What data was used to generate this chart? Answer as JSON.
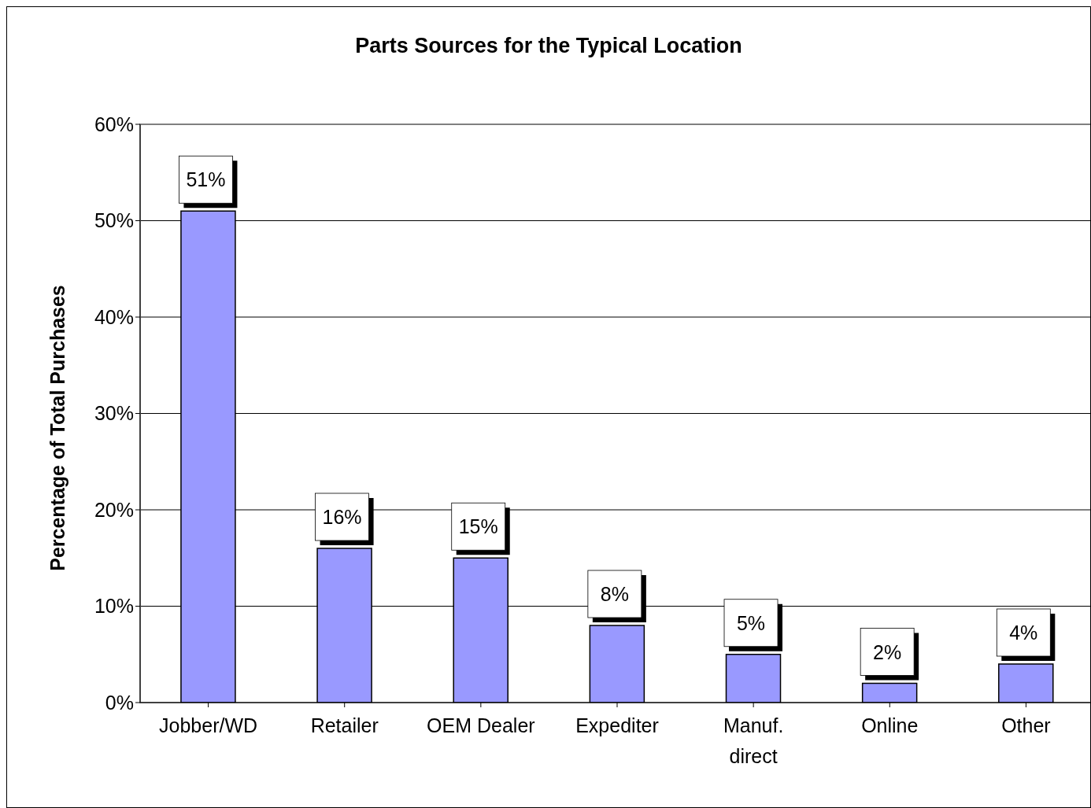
{
  "chart_data": {
    "type": "bar",
    "title": "Parts Sources for the Typical Location",
    "ylabel": "Percentage of Total Purchases",
    "categories": [
      "Jobber/WD",
      "Retailer",
      "OEM Dealer",
      "Expediter",
      "Manuf. direct",
      "Online",
      "Other"
    ],
    "values": [
      51,
      16,
      15,
      8,
      5,
      2,
      4
    ],
    "value_labels": [
      "51%",
      "16%",
      "15%",
      "8%",
      "5%",
      "2%",
      "4%"
    ],
    "color": "#9999ff",
    "ylim": [
      0,
      60
    ],
    "yticks": [
      {
        "value": 0,
        "label": "0%"
      },
      {
        "value": 10,
        "label": "10%"
      },
      {
        "value": 20,
        "label": "20%"
      },
      {
        "value": 30,
        "label": "30%"
      },
      {
        "value": 40,
        "label": "40%"
      },
      {
        "value": 50,
        "label": "50%"
      },
      {
        "value": 60,
        "label": "60%"
      }
    ],
    "grid": "y",
    "legend": false
  }
}
